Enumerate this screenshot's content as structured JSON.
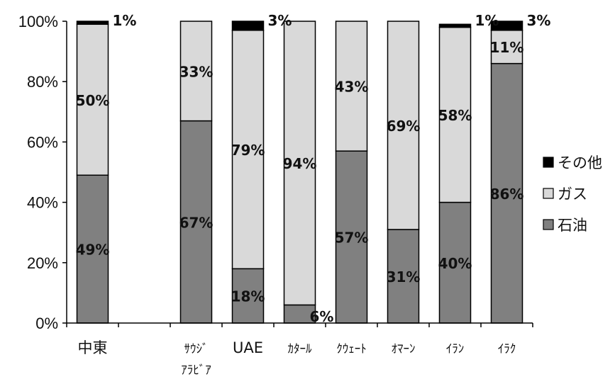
{
  "chart_data": {
    "type": "bar",
    "stacked": true,
    "percent": true,
    "categories": [
      "中東",
      "",
      "サウジアラビア",
      "UAE",
      "カタール",
      "クウェート",
      "オマーン",
      "イラン",
      "イラク"
    ],
    "category_label_lines": [
      [
        "中東"
      ],
      [
        ""
      ],
      [
        "ｻｳｼﾞ",
        "ｱﾗﾋﾞｱ"
      ],
      [
        "UAE"
      ],
      [
        "ｶﾀｰﾙ"
      ],
      [
        "ｸｳｪｰﾄ"
      ],
      [
        "ｵﾏｰﾝ"
      ],
      [
        "ｲﾗﾝ"
      ],
      [
        "ｲﾗｸ"
      ]
    ],
    "series": [
      {
        "name": "石油",
        "color": "#808080",
        "values": [
          49,
          null,
          67,
          18,
          6,
          57,
          31,
          40,
          86
        ],
        "labels": [
          "49%",
          "",
          "67%",
          "18%",
          "6%",
          "57%",
          "31%",
          "40%",
          "86%"
        ]
      },
      {
        "name": "ガス",
        "color": "#d9d9d9",
        "values": [
          50,
          null,
          33,
          79,
          94,
          43,
          69,
          58,
          11
        ],
        "labels": [
          "50%",
          "",
          "33%",
          "79%",
          "94%",
          "43%",
          "69%",
          "58%",
          "11%"
        ]
      },
      {
        "name": "その他",
        "color": "#000000",
        "values": [
          1,
          null,
          0,
          3,
          0,
          0,
          0,
          1,
          3
        ],
        "labels": [
          "1%",
          "",
          "",
          "3%",
          "",
          "",
          "",
          "1%",
          "3%"
        ]
      }
    ],
    "y_ticks": [
      "0%",
      "20%",
      "40%",
      "60%",
      "80%",
      "100%"
    ],
    "ylim": [
      0,
      100
    ],
    "legend": {
      "position": "right",
      "order": [
        "その他",
        "ガス",
        "石油"
      ]
    },
    "grid": false
  }
}
